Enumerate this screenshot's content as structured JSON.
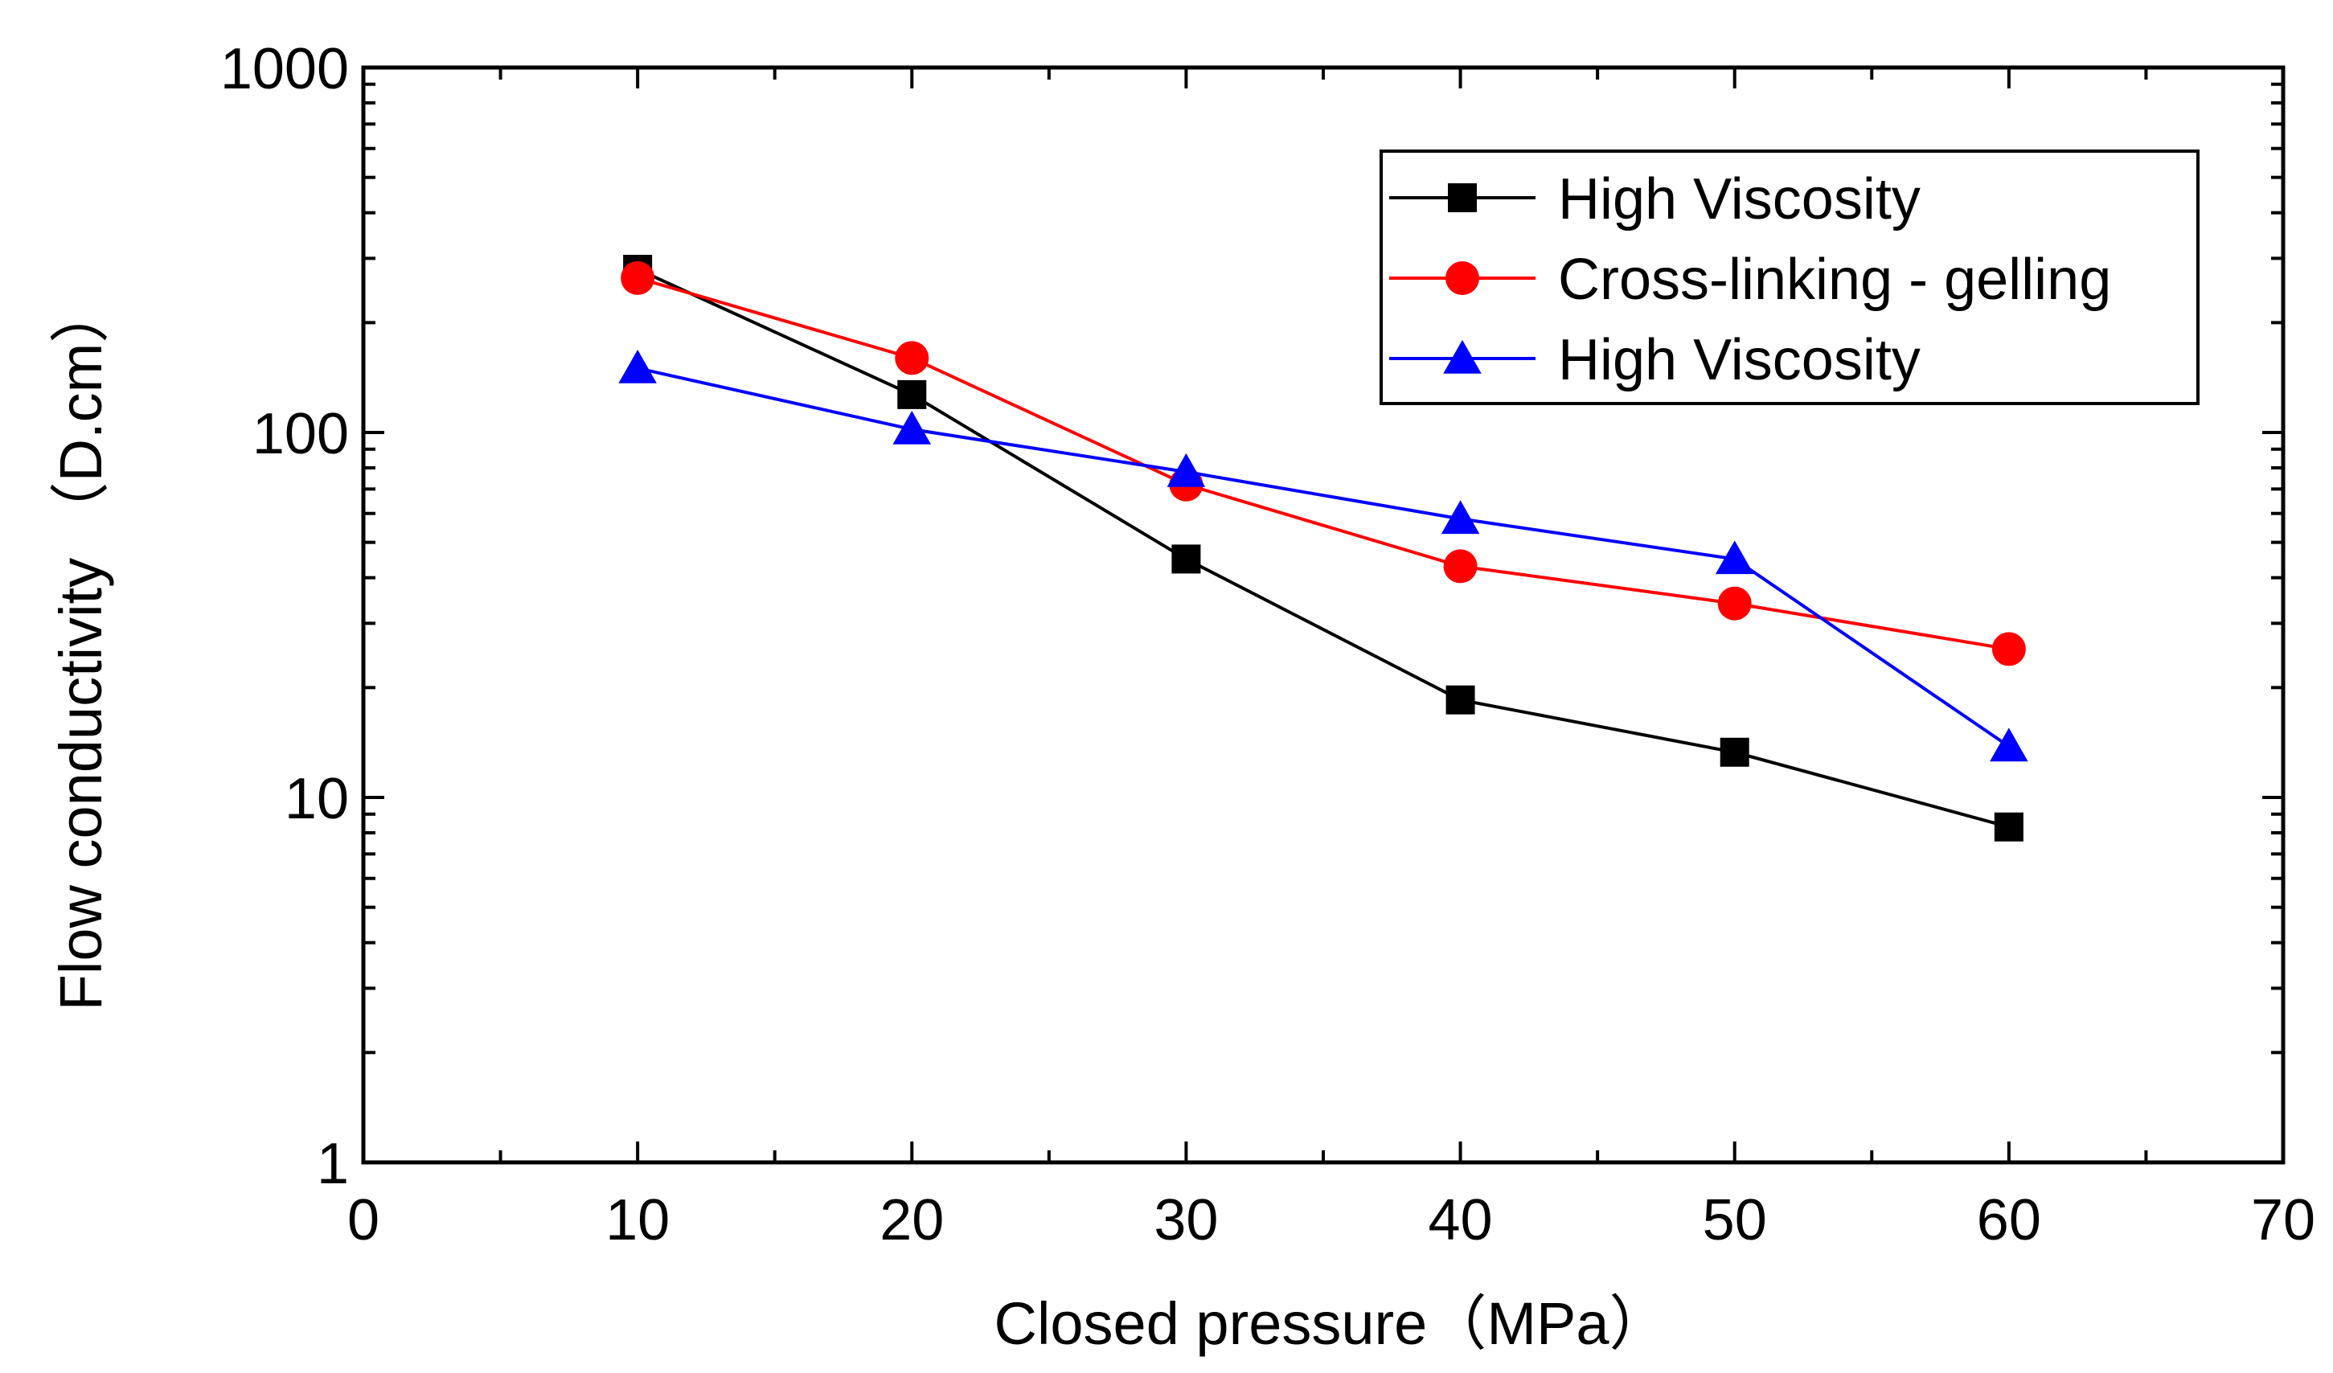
{
  "chart_data": {
    "type": "line",
    "title": "",
    "xlabel": "Closed pressure（MPa）",
    "ylabel": "Flow conductivity （D.cm）",
    "xlim": [
      0,
      70
    ],
    "ylim": [
      1,
      1000
    ],
    "yscale": "log",
    "x_ticks": [
      0,
      10,
      20,
      30,
      40,
      50,
      60,
      70
    ],
    "x_tick_labels": [
      "0",
      "10",
      "20",
      "30",
      "40",
      "50",
      "60",
      "70"
    ],
    "y_ticks": [
      1,
      10,
      100,
      1000
    ],
    "y_tick_labels": [
      "1",
      "10",
      "100",
      "1000"
    ],
    "grid": false,
    "legend_position": "top-right",
    "series": [
      {
        "name": "High Viscosity",
        "color": "#000000",
        "marker": "square",
        "x": [
          10,
          20,
          30,
          40,
          50,
          60
        ],
        "values": [
          280,
          127,
          45,
          18.5,
          13.3,
          8.3
        ]
      },
      {
        "name": "Cross-linking - gelling",
        "color": "#ff0000",
        "marker": "circle",
        "x": [
          10,
          20,
          30,
          40,
          50,
          60
        ],
        "values": [
          265,
          160,
          72,
          43,
          34,
          25.5
        ]
      },
      {
        "name": "High Viscosity",
        "color": "#0000ff",
        "marker": "triangle",
        "x": [
          10,
          20,
          30,
          40,
          50,
          60
        ],
        "values": [
          150,
          102,
          78,
          58,
          45,
          13.8
        ]
      }
    ]
  }
}
